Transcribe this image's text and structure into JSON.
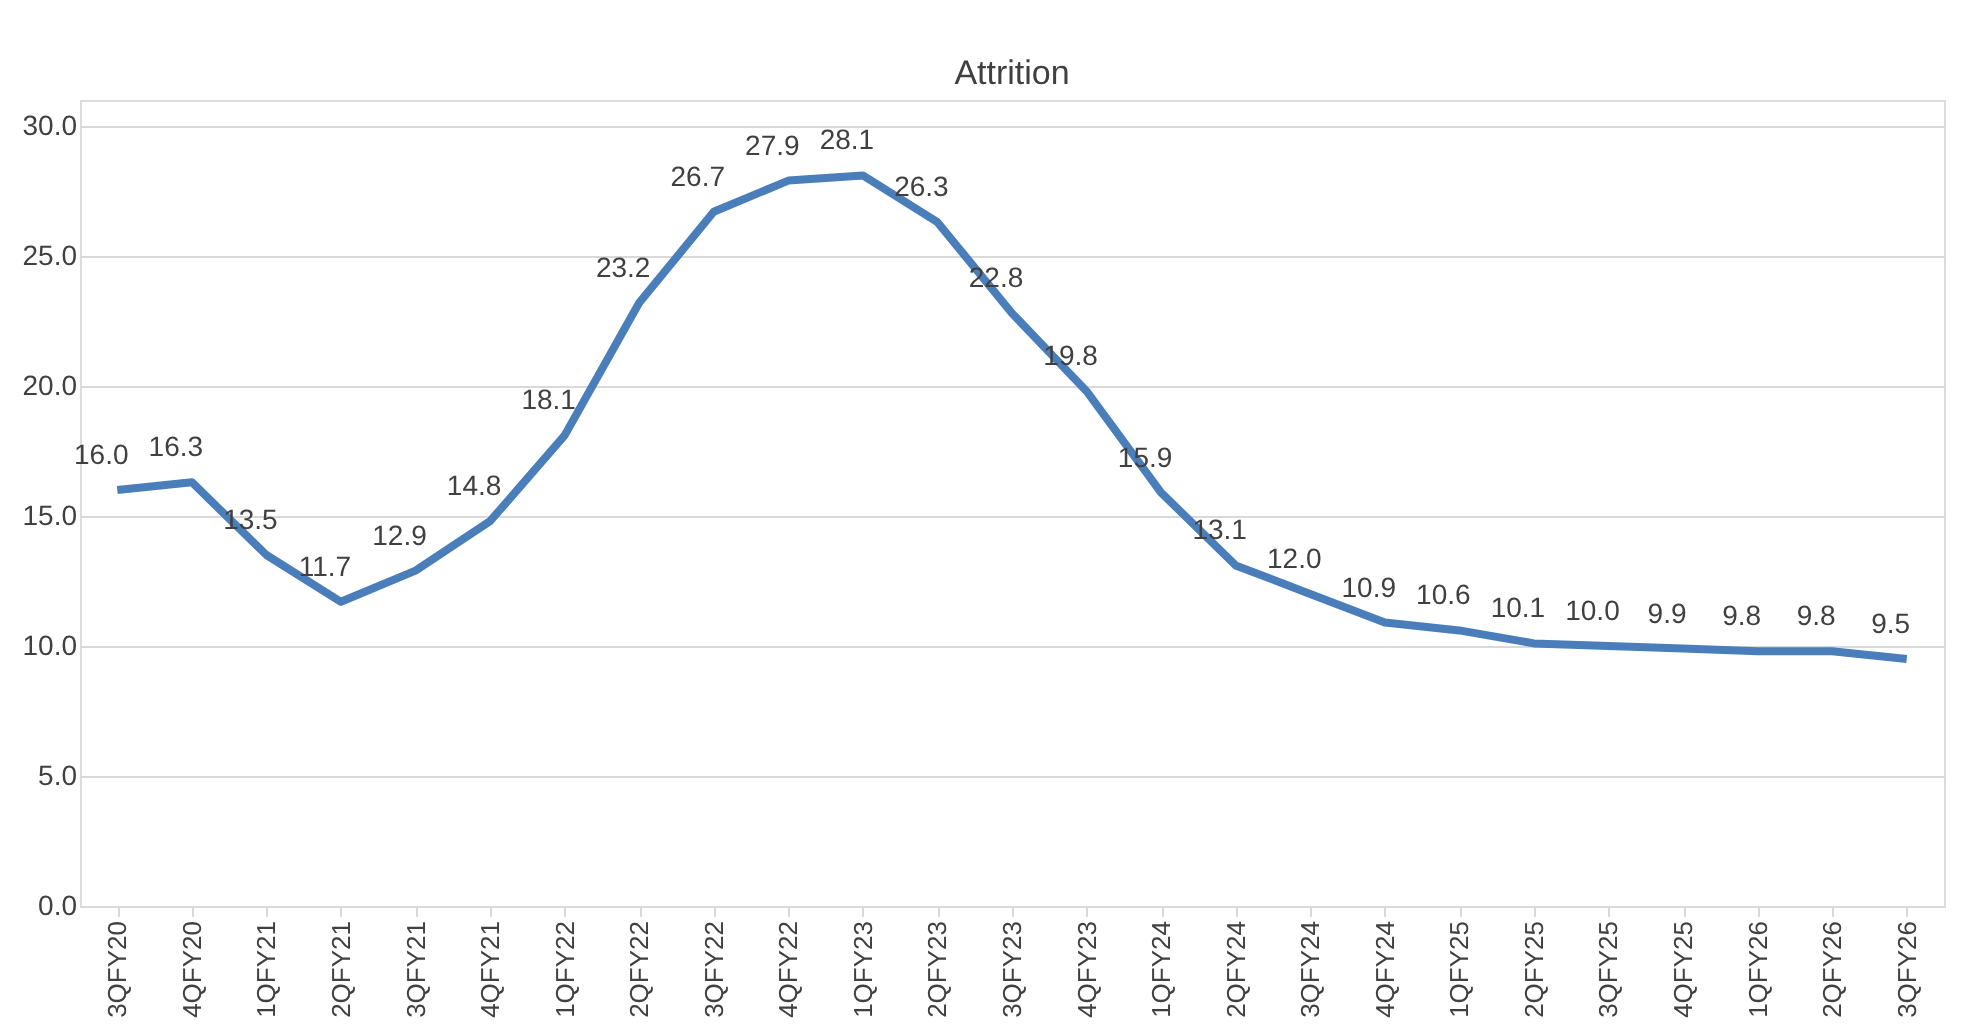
{
  "chart_data": {
    "type": "line",
    "title": "Attrition",
    "categories": [
      "3QFY20",
      "4QFY20",
      "1QFY21",
      "2QFY21",
      "3QFY21",
      "4QFY21",
      "1QFY22",
      "2QFY22",
      "3QFY22",
      "4QFY22",
      "1QFY23",
      "2QFY23",
      "3QFY23",
      "4QFY23",
      "1QFY24",
      "2QFY24",
      "3QFY24",
      "4QFY24",
      "1QFY25",
      "2QFY25",
      "3QFY25",
      "4QFY25",
      "1QFY26",
      "2QFY26",
      "3QFY26"
    ],
    "series": [
      {
        "color": "#4a7ebb",
        "values": [
          16.0,
          16.3,
          13.5,
          11.7,
          12.9,
          14.8,
          18.1,
          23.2,
          26.7,
          27.9,
          28.1,
          26.3,
          22.8,
          19.8,
          15.9,
          13.1,
          12.0,
          10.9,
          10.6,
          10.1,
          10.0,
          9.9,
          9.8,
          9.8,
          9.5
        ],
        "value_labels": [
          "16.0",
          "16.3",
          "13.5",
          "11.7",
          "12.9",
          "14.8",
          "18.1",
          "23.2",
          "26.7",
          "27.9",
          "28.1",
          "26.3",
          "22.8",
          "19.8",
          "15.9",
          "13.1",
          "12.0",
          "10.9",
          "10.6",
          "10.1",
          "10.0",
          "9.9",
          "9.8",
          "9.8",
          "9.5"
        ]
      }
    ],
    "ylim": [
      0,
      31
    ],
    "yticks": [
      {
        "value": 0,
        "label": "0.0"
      },
      {
        "value": 5,
        "label": "5.0"
      },
      {
        "value": 10,
        "label": "10.0"
      },
      {
        "value": 15,
        "label": "15.0"
      },
      {
        "value": 20,
        "label": "20.0"
      },
      {
        "value": 25,
        "label": "25.0"
      },
      {
        "value": 30,
        "label": "30.0"
      }
    ],
    "grid": "y",
    "marker": "none",
    "line_style": "solid"
  }
}
